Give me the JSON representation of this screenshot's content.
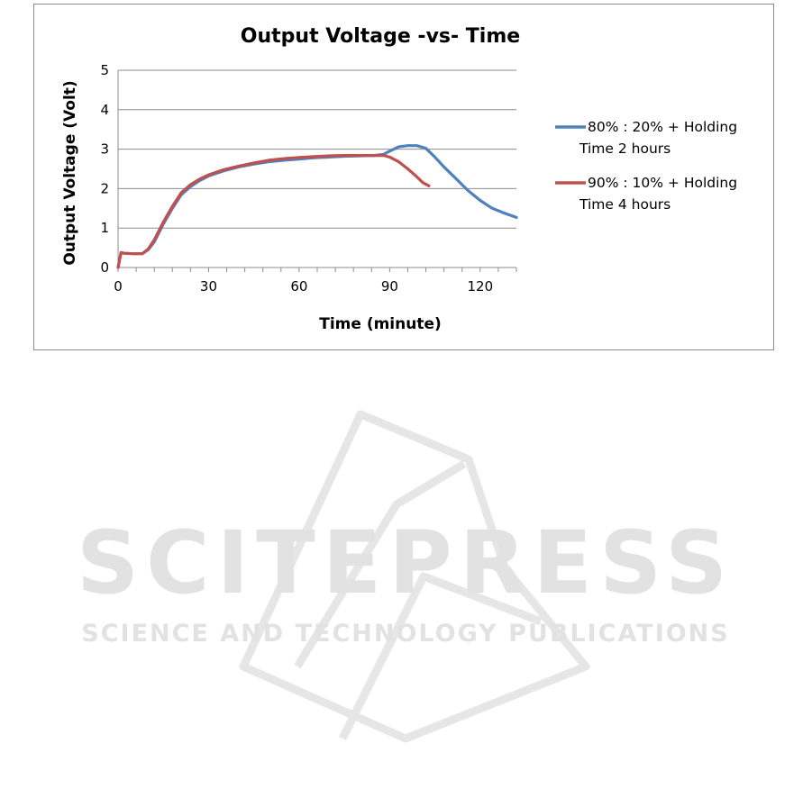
{
  "chart_data": {
    "type": "line",
    "title": "Output Voltage -vs- Time",
    "xlabel": "Time (minute)",
    "ylabel": "Output Voltage (Volt)",
    "xlim": [
      0,
      132
    ],
    "ylim": [
      0,
      5
    ],
    "xticks": [
      0,
      30,
      60,
      90,
      120
    ],
    "yticks": [
      0,
      1,
      2,
      3,
      4,
      5
    ],
    "grid": "horizontal",
    "legend": "right",
    "series": [
      {
        "name": "80% : 20% + Holding Time 2 hours",
        "legend_lines": [
          "80% : 20% + Holding",
          "Time 2 hours"
        ],
        "color": "#4f81bd",
        "x": [
          0,
          1,
          2,
          5,
          8,
          10,
          12,
          15,
          18,
          21,
          24,
          27,
          30,
          35,
          40,
          45,
          50,
          55,
          60,
          65,
          70,
          75,
          80,
          85,
          88,
          90,
          93,
          96,
          99,
          102,
          105,
          108,
          112,
          116,
          120,
          124,
          128,
          132
        ],
        "y": [
          0,
          0.38,
          0.36,
          0.35,
          0.35,
          0.45,
          0.65,
          1.1,
          1.5,
          1.85,
          2.05,
          2.2,
          2.32,
          2.45,
          2.55,
          2.62,
          2.68,
          2.72,
          2.75,
          2.78,
          2.8,
          2.82,
          2.83,
          2.84,
          2.87,
          2.95,
          3.06,
          3.09,
          3.09,
          3.02,
          2.8,
          2.55,
          2.25,
          1.95,
          1.7,
          1.5,
          1.38,
          1.27
        ]
      },
      {
        "name": "90% : 10% + Holding Time 4 hours",
        "legend_lines": [
          "90% : 10% + Holding",
          "Time 4 hours"
        ],
        "color": "#c0504d",
        "x": [
          0,
          1,
          2,
          5,
          8,
          10,
          12,
          15,
          18,
          21,
          24,
          27,
          30,
          35,
          40,
          45,
          50,
          55,
          60,
          65,
          70,
          75,
          80,
          85,
          88,
          90,
          93,
          96,
          99,
          101,
          103
        ],
        "y": [
          0,
          0.38,
          0.36,
          0.35,
          0.35,
          0.47,
          0.7,
          1.15,
          1.55,
          1.9,
          2.1,
          2.24,
          2.35,
          2.48,
          2.57,
          2.65,
          2.72,
          2.76,
          2.79,
          2.81,
          2.83,
          2.84,
          2.84,
          2.84,
          2.84,
          2.8,
          2.68,
          2.5,
          2.3,
          2.15,
          2.07
        ]
      }
    ]
  },
  "watermark": {
    "main": "SCITEPRESS",
    "sub": "SCIENCE AND TECHNOLOGY PUBLICATIONS"
  }
}
